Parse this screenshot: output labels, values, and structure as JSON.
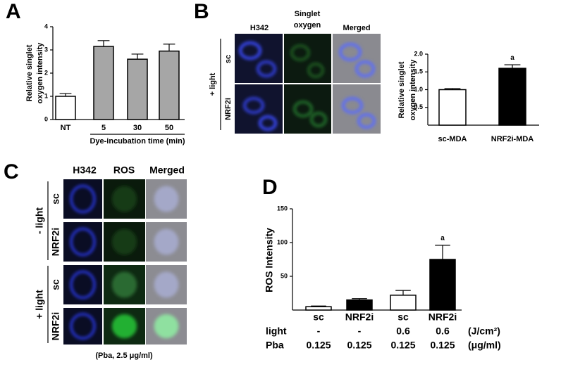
{
  "panels": {
    "letters": [
      "A",
      "B",
      "C",
      "D"
    ],
    "b_images": {
      "columns": [
        "H342",
        [
          "Singlet",
          "oxygen"
        ],
        "Merged"
      ],
      "rows": [
        "sc",
        "NRF2i"
      ],
      "group": "+ light"
    },
    "c_images": {
      "columns": [
        "H342",
        "ROS",
        "Merged"
      ],
      "rows": [
        "sc",
        "NRF2i",
        "sc",
        "NRF2i"
      ],
      "groups": [
        "- light",
        "+ light"
      ],
      "caption": "(Pba, 2.5 μg/ml)"
    }
  },
  "chart_data": [
    {
      "type": "bar",
      "ylabel": [
        "Relative singlet",
        "oxygen intensity"
      ],
      "xlabel": "Dye-incubation time (min)",
      "categories": [
        "NT",
        "5",
        "30",
        "50"
      ],
      "values": [
        1.0,
        3.15,
        2.6,
        2.95
      ],
      "errors": [
        0.12,
        0.25,
        0.22,
        0.3
      ],
      "colors": [
        "#ffffff",
        "#a6a6a6",
        "#a6a6a6",
        "#a6a6a6"
      ],
      "ylim": [
        0,
        4
      ],
      "yticks": [
        0,
        1,
        2,
        3,
        4
      ]
    },
    {
      "type": "bar",
      "ylabel": [
        "Relative singlet",
        "oxygen intensity"
      ],
      "categories": [
        "sc-MDA",
        "NRF2i-MDA"
      ],
      "values": [
        1.0,
        1.6
      ],
      "errors": [
        0.03,
        0.1
      ],
      "colors": [
        "#ffffff",
        "#000000"
      ],
      "annotations": [
        null,
        "a"
      ],
      "ylim": [
        0,
        2.0
      ],
      "yticks": [
        0.5,
        {
          "value": 1.0,
          "label": "1.0"
        },
        1.5,
        {
          "value": 2.0,
          "label": "2.0"
        }
      ]
    },
    {
      "type": "bar",
      "ylabel": [
        "ROS Intensity"
      ],
      "categories": [
        "sc",
        "NRF2i",
        "sc",
        "NRF2i"
      ],
      "values": [
        5,
        15,
        22,
        75
      ],
      "errors": [
        1,
        2,
        7,
        21
      ],
      "colors": [
        "#ffffff",
        "#000000",
        "#ffffff",
        "#000000"
      ],
      "annotations": [
        null,
        null,
        null,
        "a"
      ],
      "ylim": [
        0,
        150
      ],
      "yticks": [
        50,
        100,
        150
      ],
      "table": [
        {
          "label": "light",
          "cells": [
            "-",
            "-",
            "0.6",
            "0.6"
          ],
          "unit": "(J/cm²)"
        },
        {
          "label": "Pba",
          "cells": [
            "0.125",
            "0.125",
            "0.125",
            "0.125"
          ],
          "unit": "(μg/ml)"
        }
      ]
    }
  ]
}
